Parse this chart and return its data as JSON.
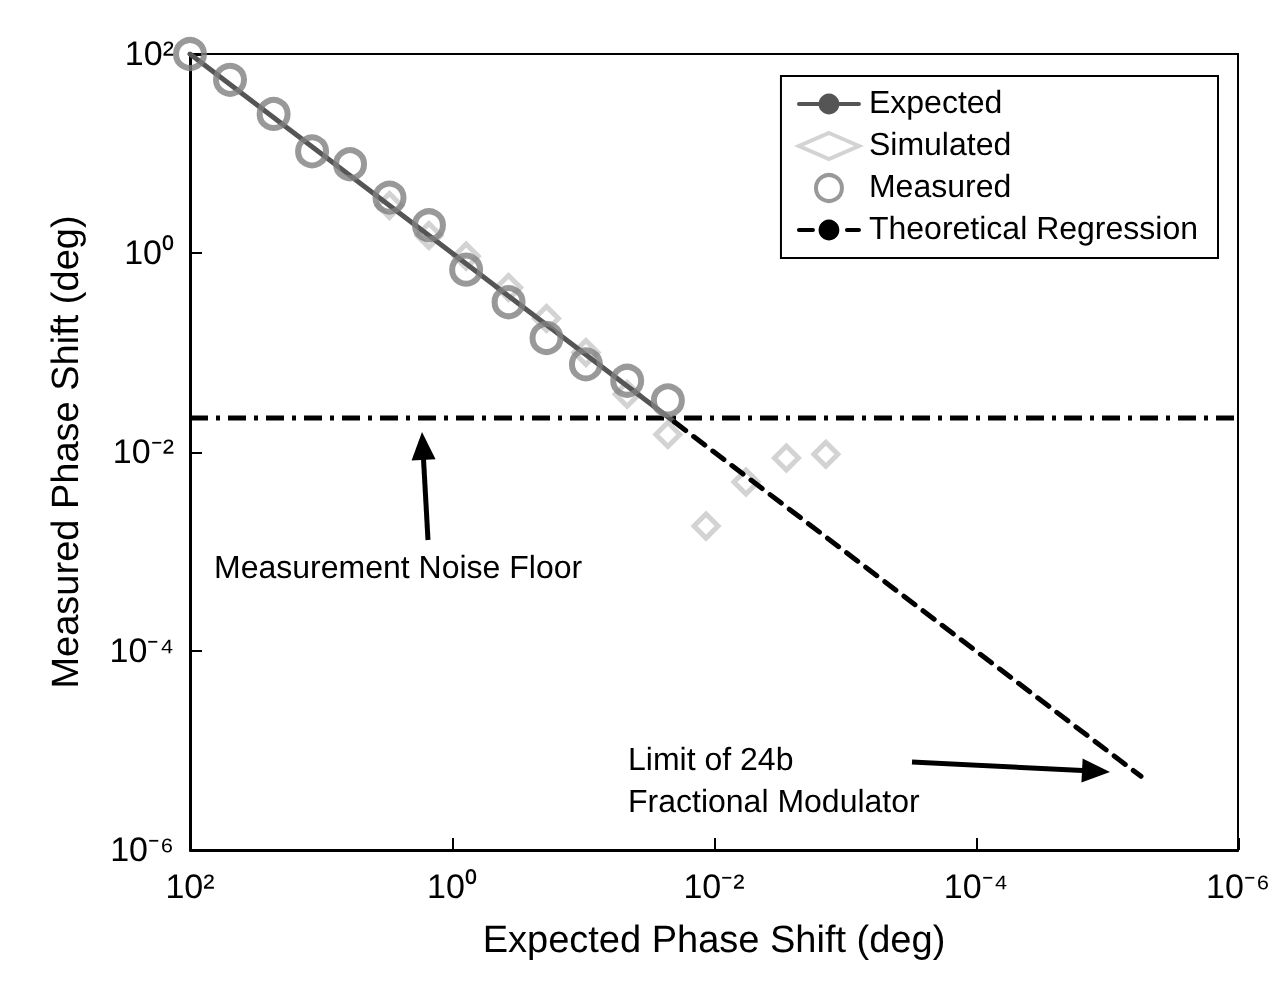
{
  "chart_data": {
    "type": "scatter",
    "xlabel": "Expected Phase Shift (deg)",
    "ylabel": "Measured Phase Shift (deg)",
    "log": "xy",
    "grid": false,
    "legend": "top right",
    "xlim": [
      100,
      1e-06
    ],
    "ylim": [
      1e-06,
      100
    ],
    "xticks": [
      {
        "value": 100,
        "label": "10²"
      },
      {
        "value": 1,
        "label": "10⁰"
      },
      {
        "value": 0.01,
        "label": "10⁻²"
      },
      {
        "value": 0.0001,
        "label": "10⁻⁴"
      },
      {
        "value": 1e-06,
        "label": "10⁻⁶"
      }
    ],
    "yticks": [
      {
        "value": 1e-06,
        "label": "10⁻⁶"
      },
      {
        "value": 0.0001,
        "label": "10⁻⁴"
      },
      {
        "value": 0.01,
        "label": "10⁻²"
      },
      {
        "value": 1,
        "label": "10⁰"
      },
      {
        "value": 100,
        "label": "10²"
      }
    ],
    "series": [
      {
        "name": "Expected",
        "type": "line",
        "color": "#555555",
        "line_style": "solid",
        "marker": "none",
        "x": [
          100,
          0.02
        ],
        "values": [
          100,
          0.02
        ]
      },
      {
        "name": "Simulated",
        "color": "#c8c8c8",
        "marker": "diamond",
        "x": [
          3,
          1.5,
          0.78,
          0.37,
          0.19,
          0.095,
          0.046,
          0.0225,
          0.0115,
          0.0057,
          0.0028,
          0.0014
        ],
        "values": [
          3,
          1.5,
          0.93,
          0.45,
          0.22,
          0.1,
          0.038,
          0.015,
          0.0018,
          0.005,
          0.0087,
          0.0095
        ]
      },
      {
        "name": "Measured",
        "color": "#808080",
        "marker": "circle",
        "x": [
          100,
          49.5,
          23,
          11.7,
          6,
          3,
          1.5,
          0.78,
          0.37,
          0.19,
          0.095,
          0.046,
          0.0225
        ],
        "values": [
          100,
          55,
          25,
          10.5,
          7.8,
          3.6,
          1.9,
          0.68,
          0.32,
          0.14,
          0.076,
          0.052,
          0.033
        ]
      },
      {
        "name": "Theoretical Regression",
        "type": "line",
        "color": "#000000",
        "line_style": "dashed",
        "marker": "none",
        "x": [
          0.02,
          5.5e-06
        ],
        "values": [
          0.02,
          5.5e-06
        ]
      }
    ],
    "ref_lines": [
      {
        "axis": "y",
        "value": 0.022,
        "color": "#000000",
        "line_style": "dashdot"
      }
    ],
    "annotations": [
      "Measurement Noise Floor",
      "Limit of 24b\nFractional Modulator"
    ]
  }
}
